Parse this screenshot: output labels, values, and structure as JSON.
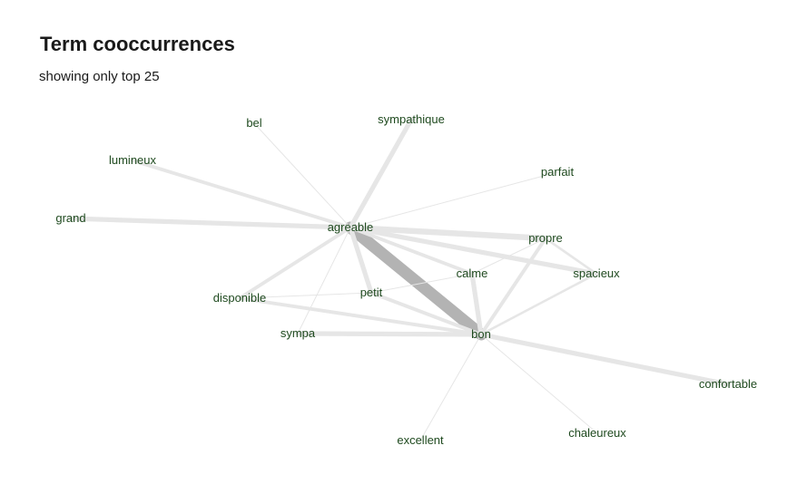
{
  "header": {
    "title": "Term cooccurrences",
    "subtitle": "showing only top 25"
  },
  "graph": {
    "nodes": [
      {
        "id": "agreable",
        "label": "agreable"
      },
      {
        "id": "bon",
        "label": "bon"
      },
      {
        "id": "grand",
        "label": "grand"
      },
      {
        "id": "lumineux",
        "label": "lumineux"
      },
      {
        "id": "bel",
        "label": "bel"
      },
      {
        "id": "sympathique",
        "label": "sympathique"
      },
      {
        "id": "parfait",
        "label": "parfait"
      },
      {
        "id": "propre",
        "label": "propre"
      },
      {
        "id": "calme",
        "label": "calme"
      },
      {
        "id": "spacieux",
        "label": "spacieux"
      },
      {
        "id": "petit",
        "label": "petit"
      },
      {
        "id": "disponible",
        "label": "disponible"
      },
      {
        "id": "sympa",
        "label": "sympa"
      },
      {
        "id": "confortable",
        "label": "confortable"
      },
      {
        "id": "excellent",
        "label": "excellent"
      },
      {
        "id": "chaleureux",
        "label": "chaleureux"
      }
    ],
    "edges": [
      {
        "source": "agreable",
        "target": "bon",
        "weight": 10,
        "color": "#b3b3b3"
      },
      {
        "source": "agreable",
        "target": "grand",
        "weight": 4
      },
      {
        "source": "agreable",
        "target": "lumineux",
        "weight": 3
      },
      {
        "source": "agreable",
        "target": "sympathique",
        "weight": 4
      },
      {
        "source": "agreable",
        "target": "bel",
        "weight": 1
      },
      {
        "source": "agreable",
        "target": "propre",
        "weight": 5
      },
      {
        "source": "agreable",
        "target": "spacieux",
        "weight": 4
      },
      {
        "source": "agreable",
        "target": "calme",
        "weight": 3
      },
      {
        "source": "agreable",
        "target": "petit",
        "weight": 4
      },
      {
        "source": "agreable",
        "target": "disponible",
        "weight": 3
      },
      {
        "source": "agreable",
        "target": "parfait",
        "weight": 1
      },
      {
        "source": "agreable",
        "target": "sympa",
        "weight": 1
      },
      {
        "source": "bon",
        "target": "calme",
        "weight": 4
      },
      {
        "source": "bon",
        "target": "propre",
        "weight": 3
      },
      {
        "source": "bon",
        "target": "spacieux",
        "weight": 2
      },
      {
        "source": "bon",
        "target": "petit",
        "weight": 3
      },
      {
        "source": "bon",
        "target": "disponible",
        "weight": 3
      },
      {
        "source": "bon",
        "target": "sympa",
        "weight": 4
      },
      {
        "source": "bon",
        "target": "confortable",
        "weight": 4
      },
      {
        "source": "bon",
        "target": "excellent",
        "weight": 1
      },
      {
        "source": "bon",
        "target": "chaleureux",
        "weight": 1
      },
      {
        "source": "calme",
        "target": "propre",
        "weight": 1
      },
      {
        "source": "calme",
        "target": "petit",
        "weight": 1
      },
      {
        "source": "propre",
        "target": "spacieux",
        "weight": 2
      },
      {
        "source": "disponible",
        "target": "petit",
        "weight": 1
      }
    ]
  }
}
